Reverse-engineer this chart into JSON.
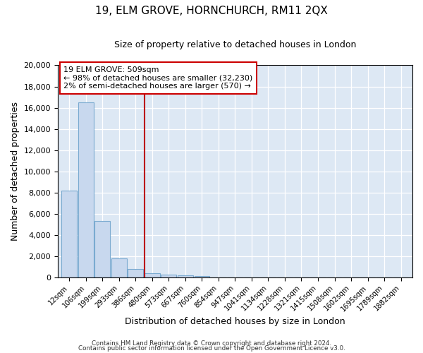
{
  "title": "19, ELM GROVE, HORNCHURCH, RM11 2QX",
  "subtitle": "Size of property relative to detached houses in London",
  "xlabel": "Distribution of detached houses by size in London",
  "ylabel": "Number of detached properties",
  "bar_labels": [
    "12sqm",
    "106sqm",
    "199sqm",
    "293sqm",
    "386sqm",
    "480sqm",
    "573sqm",
    "667sqm",
    "760sqm",
    "854sqm",
    "947sqm",
    "1041sqm",
    "1134sqm",
    "1228sqm",
    "1321sqm",
    "1415sqm",
    "1508sqm",
    "1602sqm",
    "1695sqm",
    "1789sqm",
    "1882sqm"
  ],
  "bar_heights": [
    8200,
    16500,
    5300,
    1800,
    800,
    350,
    280,
    150,
    100,
    0,
    0,
    0,
    0,
    0,
    0,
    0,
    0,
    0,
    0,
    0,
    0
  ],
  "bar_color": "#c8d8ee",
  "bar_edge_color": "#7aaad0",
  "vline_x_index": 4.55,
  "vline_color": "#bb0000",
  "ylim": [
    0,
    20000
  ],
  "yticks": [
    0,
    2000,
    4000,
    6000,
    8000,
    10000,
    12000,
    14000,
    16000,
    18000,
    20000
  ],
  "annotation_title": "19 ELM GROVE: 509sqm",
  "annotation_line1": "← 98% of detached houses are smaller (32,230)",
  "annotation_line2": "2% of semi-detached houses are larger (570) →",
  "annotation_box_color": "#ffffff",
  "annotation_box_edge": "#cc0000",
  "footer1": "Contains HM Land Registry data © Crown copyright and database right 2024.",
  "footer2": "Contains public sector information licensed under the Open Government Licence v3.0.",
  "bg_color": "#ffffff",
  "plot_bg_color": "#dde8f4"
}
